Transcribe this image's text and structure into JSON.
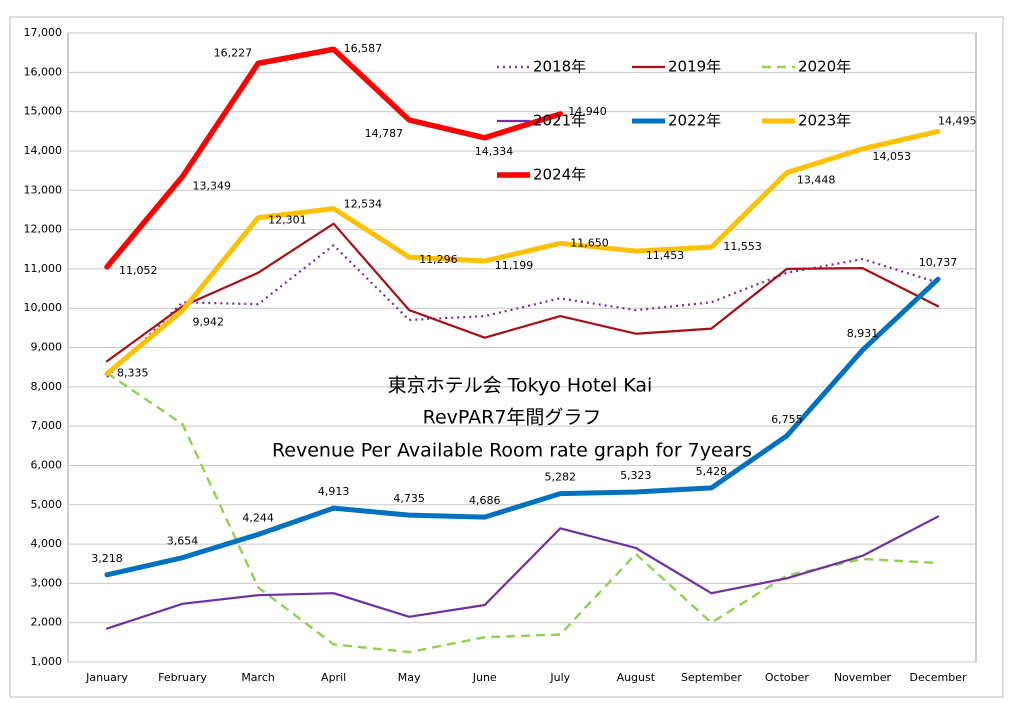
{
  "chart_data": {
    "type": "line",
    "title_lines": [
      "東京ホテル会  Tokyo Hotel Kai",
      "RevPAR7年間グラフ",
      "Revenue Per Available Room rate graph for 7years"
    ],
    "categories": [
      "January",
      "February",
      "March",
      "April",
      "May",
      "June",
      "July",
      "August",
      "September",
      "October",
      "November",
      "December"
    ],
    "ylim": [
      1000,
      17000
    ],
    "yticks": [
      {
        "value": 1000,
        "label": "1,000"
      },
      {
        "value": 2000,
        "label": "2,000"
      },
      {
        "value": 3000,
        "label": "3,000"
      },
      {
        "value": 4000,
        "label": "4,000"
      },
      {
        "value": 5000,
        "label": "5,000"
      },
      {
        "value": 6000,
        "label": "6,000"
      },
      {
        "value": 7000,
        "label": "7,000"
      },
      {
        "value": 8000,
        "label": "8,000"
      },
      {
        "value": 9000,
        "label": "9,000"
      },
      {
        "value": 10000,
        "label": "10,000"
      },
      {
        "value": 11000,
        "label": "11,000"
      },
      {
        "value": 12000,
        "label": "12,000"
      },
      {
        "value": 13000,
        "label": "13,000"
      },
      {
        "value": 14000,
        "label": "14,000"
      },
      {
        "value": 15000,
        "label": "15,000"
      },
      {
        "value": 16000,
        "label": "16,000"
      },
      {
        "value": 17000,
        "label": "17,000"
      }
    ],
    "grid": true,
    "series": [
      {
        "name": "2018年",
        "color": "#7030a0",
        "dash": "dotted",
        "width": 2.2,
        "values": [
          8250,
          10150,
          10100,
          11600,
          9700,
          9800,
          10250,
          9950,
          10150,
          10900,
          11250,
          10650
        ]
      },
      {
        "name": "2019年",
        "color": "#a50f15",
        "dash": "solid",
        "width": 2.2,
        "values": [
          8650,
          10050,
          10900,
          12150,
          9950,
          9250,
          9800,
          9350,
          9480,
          11000,
          11020,
          10050
        ]
      },
      {
        "name": "2020年",
        "color": "#92d050",
        "dash": "dashed",
        "width": 2.4,
        "values": [
          8350,
          7050,
          2900,
          1450,
          1250,
          1630,
          1700,
          3750,
          2000,
          3200,
          3620,
          3520
        ]
      },
      {
        "name": "2021年",
        "color": "#7030a0",
        "dash": "solid",
        "width": 2.2,
        "values": [
          1850,
          2480,
          2700,
          2750,
          2150,
          2450,
          4400,
          3900,
          2750,
          3130,
          3700,
          4700
        ]
      },
      {
        "name": "2022年",
        "color": "#0070c0",
        "dash": "solid",
        "width": 5,
        "values": [
          3218,
          3654,
          4244,
          4913,
          4735,
          4686,
          5282,
          5323,
          5428,
          6755,
          8931,
          10737
        ],
        "value_labels": [
          "3,218",
          "3,654",
          "4,244",
          "4,913",
          "4,735",
          "4,686",
          "5,282",
          "5,323",
          "5,428",
          "6,755",
          "8,931",
          "10,737"
        ]
      },
      {
        "name": "2023年",
        "color": "#ffc000",
        "dash": "solid",
        "width": 5,
        "values": [
          8335,
          9942,
          12301,
          12534,
          11296,
          11199,
          11650,
          11453,
          11553,
          13448,
          14053,
          14495
        ],
        "value_labels": [
          "8,335",
          "9,942",
          "12,301",
          "12,534",
          "11,296",
          "11,199",
          "11,650",
          "11,453",
          "11,553",
          "13,448",
          "14,053",
          "14,495"
        ]
      },
      {
        "name": "2024年",
        "color": "#ff0000",
        "dash": "solid",
        "width": 5.5,
        "values": [
          11052,
          13349,
          16227,
          16587,
          14787,
          14334,
          14940,
          null,
          null,
          null,
          null,
          null
        ],
        "value_labels": [
          "11,052",
          "13,349",
          "16,227",
          "16,587",
          "14,787",
          "14,334",
          "14,940",
          null,
          null,
          null,
          null,
          null
        ]
      }
    ]
  }
}
